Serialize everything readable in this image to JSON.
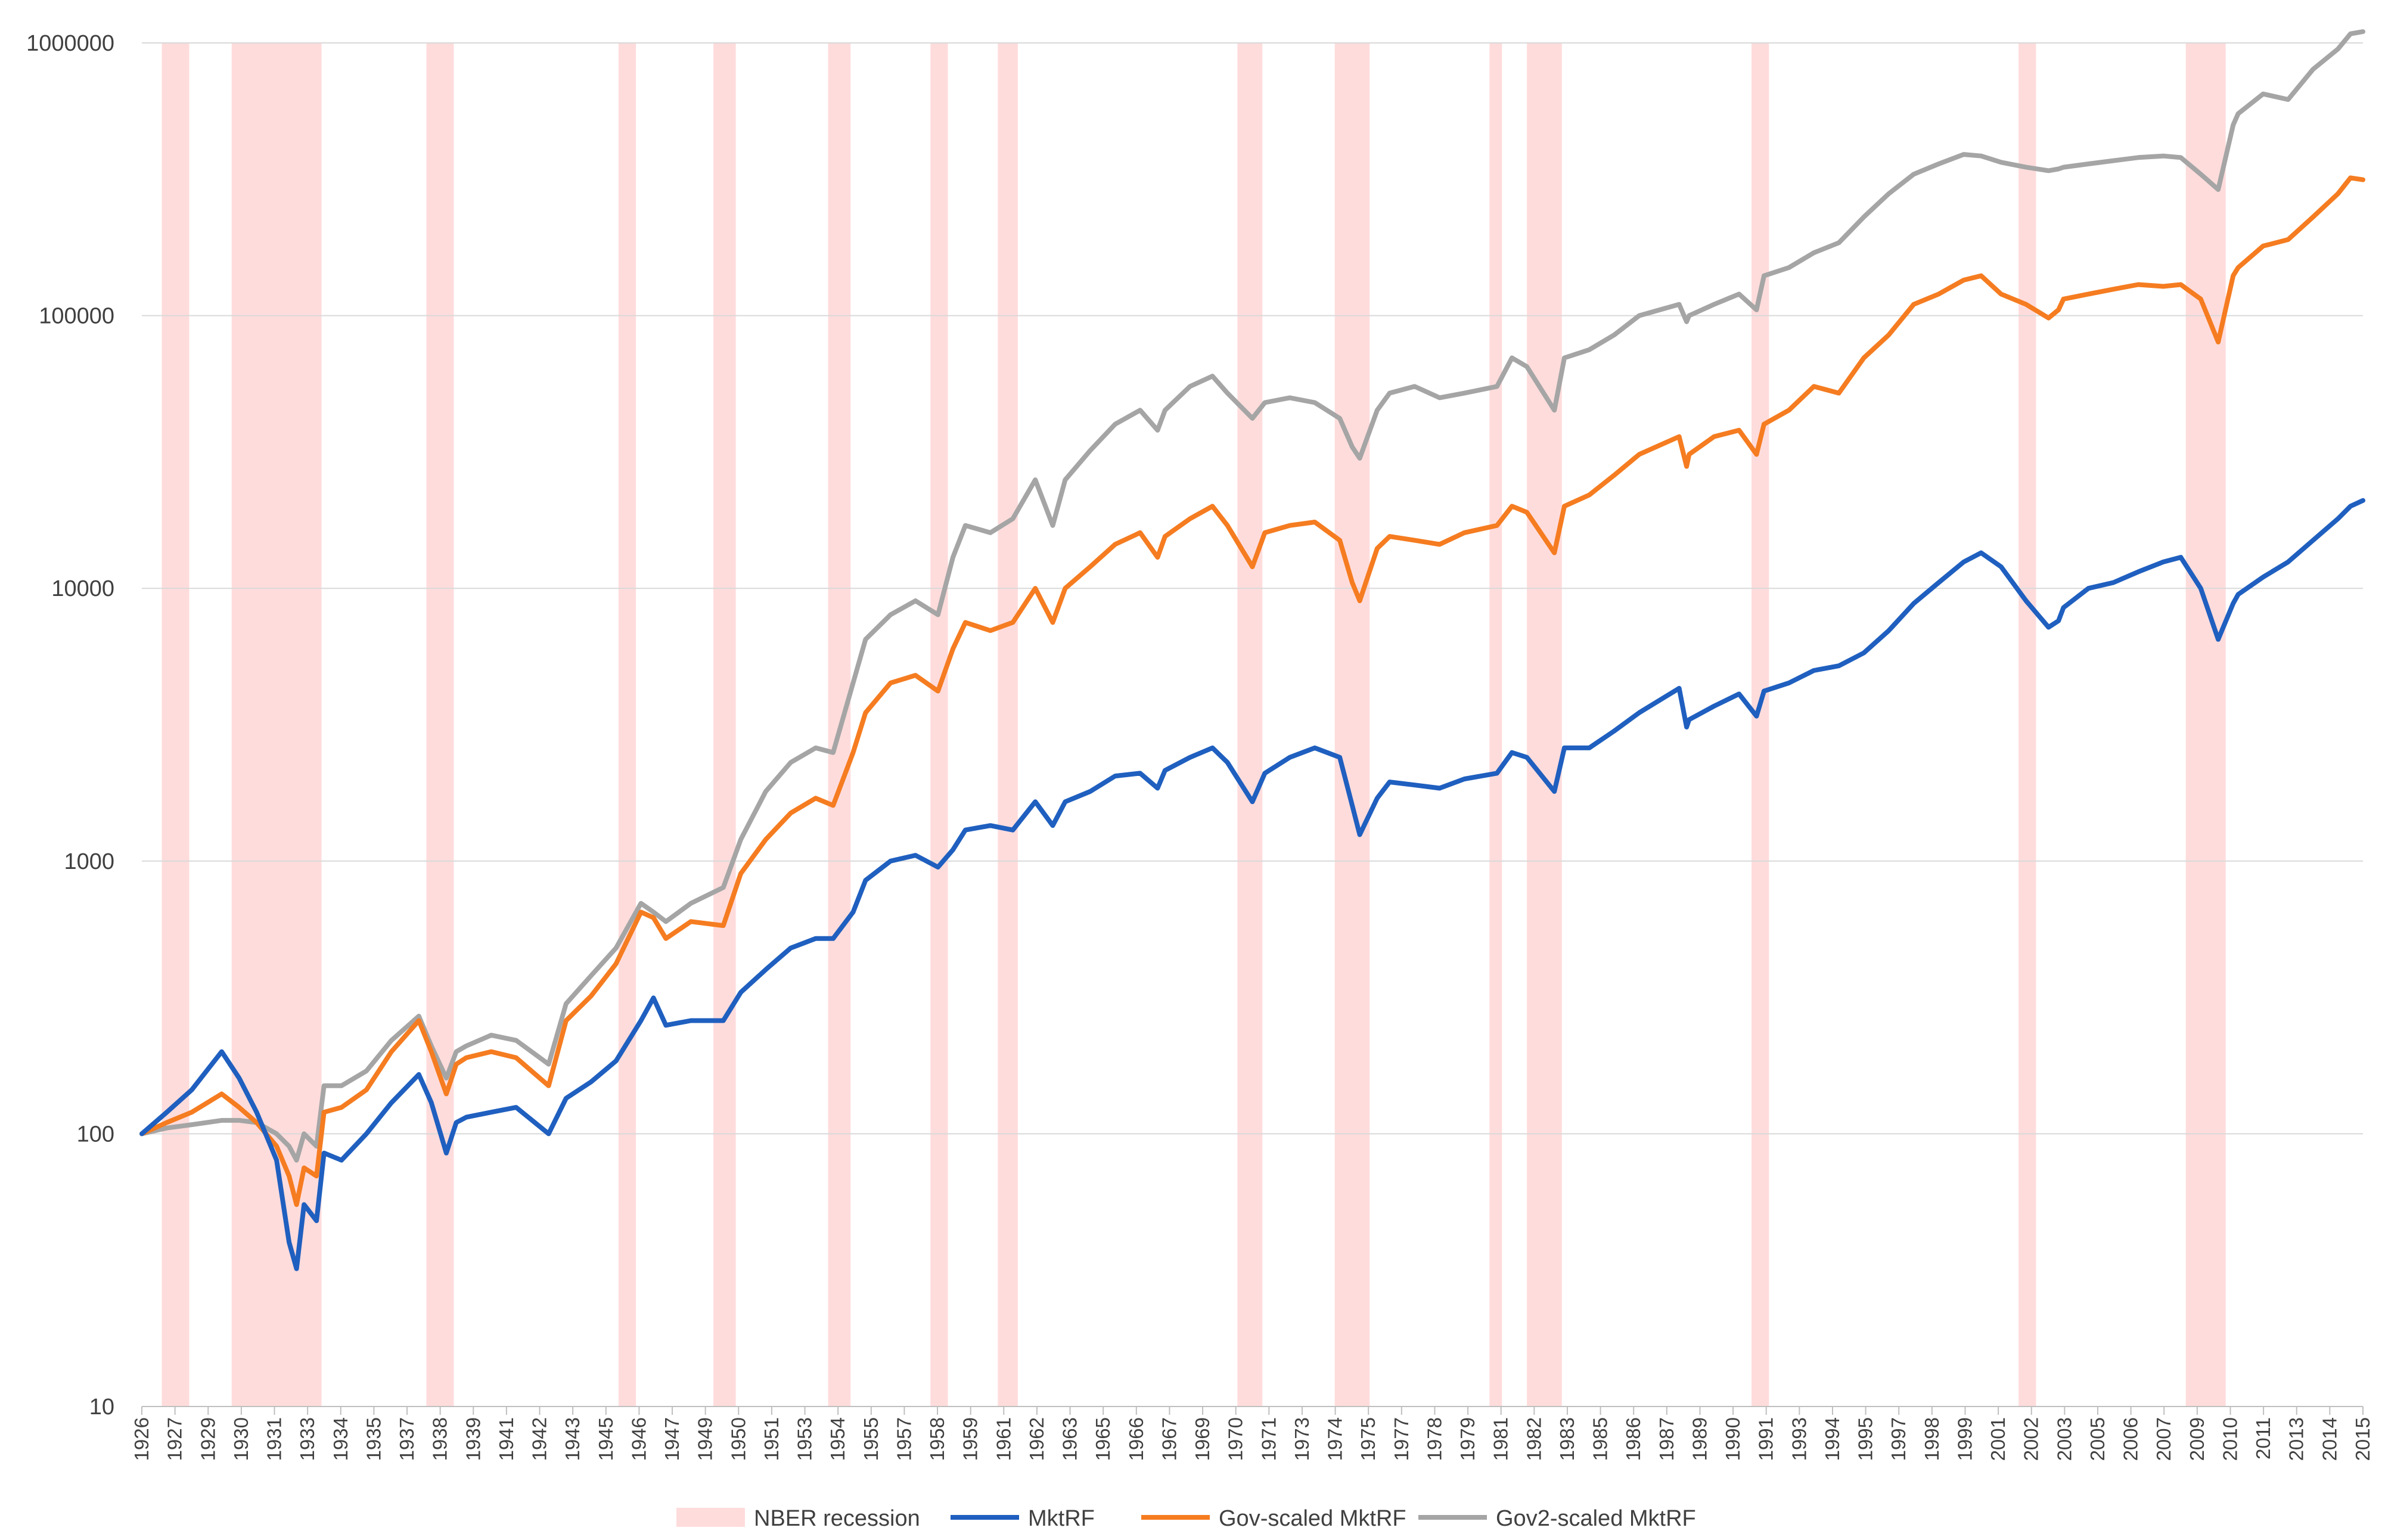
{
  "chart_data": {
    "type": "line",
    "title": "",
    "xlabel": "",
    "ylabel": "",
    "y_scale": "log",
    "ylim": [
      10,
      1000000
    ],
    "xlim": [
      1926,
      2015
    ],
    "grid": true,
    "legend_position": "bottom",
    "y_ticks": [
      "10",
      "100",
      "1000",
      "10000",
      "100000",
      "1000000"
    ],
    "y_tick_values": [
      10,
      100,
      1000,
      10000,
      100000,
      1000000
    ],
    "x_ticks": [
      "1926",
      "1927",
      "1929",
      "1930",
      "1931",
      "1933",
      "1934",
      "1935",
      "1937",
      "1938",
      "1939",
      "1941",
      "1942",
      "1943",
      "1945",
      "1946",
      "1947",
      "1949",
      "1950",
      "1951",
      "1953",
      "1954",
      "1955",
      "1957",
      "1958",
      "1959",
      "1961",
      "1962",
      "1963",
      "1965",
      "1966",
      "1967",
      "1969",
      "1970",
      "1971",
      "1973",
      "1974",
      "1975",
      "1977",
      "1978",
      "1979",
      "1981",
      "1982",
      "1983",
      "1985",
      "1986",
      "1987",
      "1989",
      "1990",
      "1991",
      "1993",
      "1994",
      "1995",
      "1997",
      "1998",
      "1999",
      "2001",
      "2002",
      "2003",
      "2005",
      "2006",
      "2007",
      "2009",
      "2010",
      "2011",
      "2013",
      "2014",
      "2015"
    ],
    "recessions": [
      [
        1926.8,
        1927.9
      ],
      [
        1929.6,
        1933.2
      ],
      [
        1937.4,
        1938.5
      ],
      [
        1945.1,
        1945.8
      ],
      [
        1948.9,
        1949.8
      ],
      [
        1953.5,
        1954.4
      ],
      [
        1957.6,
        1958.3
      ],
      [
        1960.3,
        1961.1
      ],
      [
        1969.9,
        1970.9
      ],
      [
        1973.8,
        1975.2
      ],
      [
        1980.0,
        1980.5
      ],
      [
        1981.5,
        1982.9
      ],
      [
        1990.5,
        1991.2
      ],
      [
        2001.2,
        2001.9
      ],
      [
        2007.9,
        2009.5
      ]
    ],
    "legend": [
      "NBER recession",
      "MktRF",
      "Gov-scaled MktRF",
      "Gov2-scaled MktRF"
    ],
    "series": [
      {
        "name": "MktRF",
        "color": "#1f5fbf",
        "x": [
          1926,
          1927,
          1928,
          1929.2,
          1929.9,
          1930.6,
          1931.4,
          1931.9,
          1932.2,
          1932.5,
          1933.0,
          1933.3,
          1934,
          1935,
          1936,
          1937.1,
          1937.6,
          1938.2,
          1938.6,
          1939,
          1940,
          1941,
          1942.3,
          1943,
          1944,
          1945,
          1946.0,
          1946.5,
          1947,
          1948,
          1949.3,
          1950,
          1951,
          1952,
          1953,
          1953.7,
          1954.5,
          1955,
          1956,
          1957,
          1957.9,
          1958.5,
          1959,
          1960,
          1960.9,
          1961.8,
          1962.5,
          1963,
          1964,
          1965,
          1966,
          1966.7,
          1967,
          1968,
          1968.9,
          1969.5,
          1970.5,
          1971,
          1972,
          1973,
          1974.0,
          1974.5,
          1974.8,
          1975.5,
          1976,
          1977,
          1978,
          1979,
          1980.3,
          1980.9,
          1981.5,
          1982.6,
          1983,
          1984,
          1985,
          1986,
          1987.6,
          1987.9,
          1988,
          1989,
          1990.0,
          1990.7,
          1991,
          1992,
          1993,
          1994,
          1995,
          1996,
          1997,
          1998,
          1999.0,
          1999.7,
          2000.5,
          2001.5,
          2002.4,
          2002.8,
          2003,
          2004,
          2005,
          2006,
          2007,
          2007.7,
          2008.5,
          2009.2,
          2009.8,
          2010,
          2011,
          2012,
          2013,
          2014,
          2014.5,
          2015
        ],
        "y": [
          100,
          120,
          145,
          200,
          160,
          120,
          80,
          40,
          32,
          55,
          48,
          85,
          80,
          100,
          130,
          165,
          130,
          85,
          110,
          115,
          120,
          125,
          100,
          135,
          155,
          185,
          260,
          315,
          250,
          260,
          260,
          330,
          400,
          480,
          520,
          520,
          650,
          850,
          1000,
          1050,
          950,
          1100,
          1300,
          1350,
          1300,
          1650,
          1350,
          1650,
          1800,
          2050,
          2100,
          1850,
          2150,
          2400,
          2600,
          2300,
          1650,
          2100,
          2400,
          2600,
          2400,
          1600,
          1250,
          1700,
          1950,
          1900,
          1850,
          2000,
          2100,
          2500,
          2400,
          1800,
          2600,
          2600,
          3000,
          3500,
          4300,
          3100,
          3300,
          3700,
          4100,
          3400,
          4200,
          4500,
          5000,
          5200,
          5800,
          7000,
          8800,
          10500,
          12500,
          13500,
          12000,
          9000,
          7200,
          7600,
          8500,
          10000,
          10500,
          11500,
          12500,
          13000,
          10000,
          6500,
          8800,
          9500,
          11000,
          12500,
          15000,
          18000,
          20000,
          21000
        ]
      },
      {
        "name": "Gov-scaled MktRF",
        "color": "#f57c20",
        "x": [
          1926,
          1927,
          1928,
          1929.2,
          1929.9,
          1930.6,
          1931.4,
          1931.9,
          1932.2,
          1932.5,
          1933.0,
          1933.3,
          1934,
          1935,
          1936,
          1937.1,
          1937.6,
          1938.2,
          1938.6,
          1939,
          1940,
          1941,
          1942.3,
          1943,
          1944,
          1945,
          1946.0,
          1946.5,
          1947,
          1948,
          1949.3,
          1950,
          1951,
          1952,
          1953,
          1953.7,
          1954.5,
          1955,
          1956,
          1957,
          1957.9,
          1958.5,
          1959,
          1960,
          1960.9,
          1961.8,
          1962.5,
          1963,
          1964,
          1965,
          1966,
          1966.7,
          1967,
          1968,
          1968.9,
          1969.5,
          1970.5,
          1971,
          1972,
          1973,
          1974.0,
          1974.5,
          1974.8,
          1975.5,
          1976,
          1977,
          1978,
          1979,
          1980.3,
          1980.9,
          1981.5,
          1982.6,
          1983,
          1984,
          1985,
          1986,
          1987.6,
          1987.9,
          1988,
          1989,
          1990.0,
          1990.7,
          1991,
          1992,
          1993,
          1994,
          1995,
          1996,
          1997,
          1998,
          1999.0,
          1999.7,
          2000.5,
          2001.5,
          2002.4,
          2002.8,
          2003,
          2004,
          2005,
          2006,
          2007,
          2007.7,
          2008.5,
          2009.2,
          2009.8,
          2010,
          2011,
          2012,
          2013,
          2014,
          2014.5,
          2015
        ],
        "y": [
          100,
          110,
          120,
          140,
          125,
          110,
          90,
          70,
          55,
          75,
          70,
          120,
          125,
          145,
          200,
          260,
          200,
          140,
          180,
          190,
          200,
          190,
          150,
          260,
          320,
          420,
          650,
          620,
          520,
          600,
          580,
          900,
          1200,
          1500,
          1700,
          1600,
          2500,
          3500,
          4500,
          4800,
          4200,
          6000,
          7500,
          7000,
          7500,
          10000,
          7500,
          10000,
          12000,
          14500,
          16000,
          13000,
          15500,
          18000,
          20000,
          17000,
          12000,
          16000,
          17000,
          17500,
          15000,
          10500,
          9000,
          14000,
          15500,
          15000,
          14500,
          16000,
          17000,
          20000,
          19000,
          13500,
          20000,
          22000,
          26000,
          31000,
          36000,
          28000,
          31000,
          36000,
          38000,
          31000,
          40000,
          45000,
          55000,
          52000,
          70000,
          85000,
          110000,
          120000,
          135000,
          140000,
          120000,
          110000,
          98000,
          105000,
          115000,
          120000,
          125000,
          130000,
          128000,
          130000,
          115000,
          80000,
          140000,
          150000,
          180000,
          190000,
          230000,
          280000,
          320000,
          315000
        ]
      },
      {
        "name": "Gov2-scaled MktRF",
        "color": "#a5a5a5",
        "x": [
          1926,
          1927,
          1928,
          1929.2,
          1929.9,
          1930.6,
          1931.4,
          1931.9,
          1932.2,
          1932.5,
          1933.0,
          1933.3,
          1934,
          1935,
          1936,
          1937.1,
          1937.6,
          1938.2,
          1938.6,
          1939,
          1940,
          1941,
          1942.3,
          1943,
          1944,
          1945,
          1946.0,
          1946.5,
          1947,
          1948,
          1949.3,
          1950,
          1951,
          1952,
          1953,
          1953.7,
          1954.5,
          1955,
          1956,
          1957,
          1957.9,
          1958.5,
          1959,
          1960,
          1960.9,
          1961.8,
          1962.5,
          1963,
          1964,
          1965,
          1966,
          1966.7,
          1967,
          1968,
          1968.9,
          1969.5,
          1970.5,
          1971,
          1972,
          1973,
          1974.0,
          1974.5,
          1974.8,
          1975.5,
          1976,
          1977,
          1978,
          1979,
          1980.3,
          1980.9,
          1981.5,
          1982.6,
          1983,
          1984,
          1985,
          1986,
          1987.6,
          1987.9,
          1988,
          1989,
          1990.0,
          1990.7,
          1991,
          1992,
          1993,
          1994,
          1995,
          1996,
          1997,
          1998,
          1999.0,
          1999.7,
          2000.5,
          2001.5,
          2002.4,
          2002.8,
          2003,
          2004,
          2005,
          2006,
          2007,
          2007.7,
          2008.5,
          2009.2,
          2009.8,
          2010,
          2011,
          2012,
          2013,
          2014,
          2014.5,
          2015
        ],
        "y": [
          100,
          105,
          108,
          112,
          112,
          110,
          100,
          90,
          80,
          100,
          90,
          150,
          150,
          170,
          220,
          270,
          210,
          160,
          200,
          210,
          230,
          220,
          180,
          300,
          380,
          480,
          700,
          650,
          600,
          700,
          800,
          1200,
          1800,
          2300,
          2600,
          2500,
          4500,
          6500,
          8000,
          9000,
          8000,
          13000,
          17000,
          16000,
          18000,
          25000,
          17000,
          25000,
          32000,
          40000,
          45000,
          38000,
          45000,
          55000,
          60000,
          52000,
          42000,
          48000,
          50000,
          48000,
          42000,
          33000,
          30000,
          45000,
          52000,
          55000,
          50000,
          52000,
          55000,
          70000,
          65000,
          45000,
          70000,
          75000,
          85000,
          100000,
          110000,
          95000,
          100000,
          110000,
          120000,
          105000,
          140000,
          150000,
          170000,
          185000,
          230000,
          280000,
          330000,
          360000,
          390000,
          385000,
          365000,
          350000,
          340000,
          345000,
          350000,
          360000,
          370000,
          380000,
          385000,
          380000,
          330000,
          290000,
          500000,
          550000,
          650000,
          620000,
          800000,
          950000,
          1080000,
          1100000
        ]
      }
    ]
  }
}
